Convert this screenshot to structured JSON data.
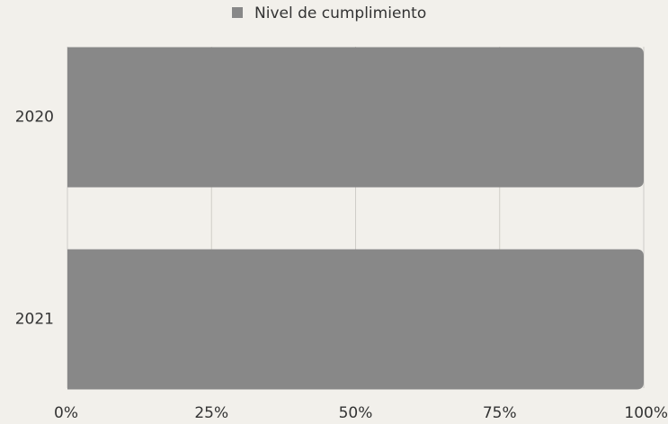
{
  "chart_data": {
    "type": "hbar",
    "categories": [
      "2020",
      "2021"
    ],
    "series": [
      {
        "name": "Nivel de cumplimiento",
        "color": "#888888",
        "values": [
          100,
          100
        ]
      }
    ],
    "xlim": [
      0,
      100
    ],
    "xticks": [
      {
        "value": 0,
        "label": "0%"
      },
      {
        "value": 25,
        "label": "25%"
      },
      {
        "value": 50,
        "label": "50%"
      },
      {
        "value": 75,
        "label": "75%"
      },
      {
        "value": 100,
        "label": "100%"
      }
    ],
    "grid": true,
    "legend": "top"
  }
}
